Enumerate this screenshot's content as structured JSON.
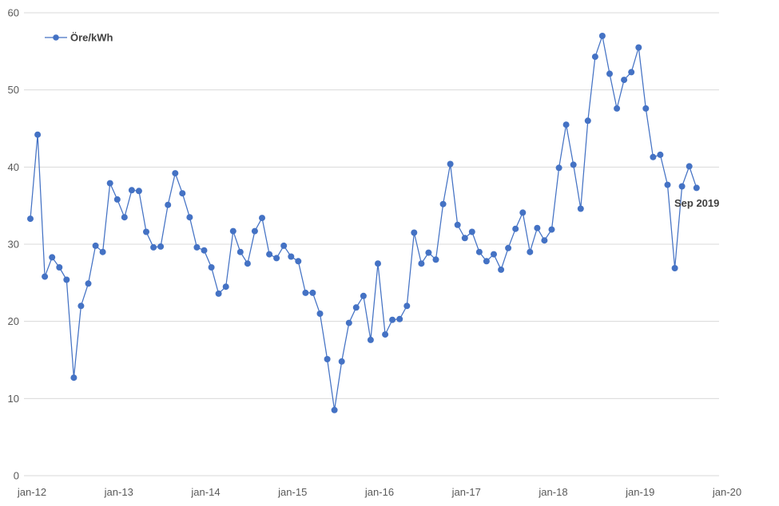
{
  "chart_data": {
    "type": "line",
    "series": [
      {
        "name": "Öre/kWh",
        "color": "#4472c4",
        "marker": "circle",
        "values": [
          33.3,
          44.2,
          25.8,
          28.3,
          27.0,
          25.4,
          12.7,
          22.0,
          24.9,
          29.8,
          29.0,
          37.9,
          35.8,
          33.5,
          37.0,
          36.9,
          31.6,
          29.6,
          29.7,
          35.1,
          39.2,
          36.6,
          33.5,
          29.6,
          29.2,
          27.0,
          23.6,
          24.5,
          31.7,
          29.0,
          27.5,
          31.7,
          33.4,
          28.7,
          28.2,
          29.8,
          28.4,
          27.8,
          23.7,
          23.7,
          21.0,
          15.1,
          8.5,
          14.8,
          19.8,
          21.8,
          23.3,
          17.6,
          27.5,
          18.3,
          20.2,
          20.3,
          22.0,
          31.5,
          27.5,
          28.9,
          28.0,
          35.2,
          40.4,
          32.5,
          30.8,
          31.6,
          29.0,
          27.8,
          28.7,
          26.7,
          29.5,
          32.0,
          34.1,
          29.0,
          32.1,
          30.5,
          31.9,
          39.9,
          45.5,
          40.3,
          34.6,
          46.0,
          54.3,
          57.0,
          52.1,
          47.6,
          51.3,
          52.3,
          55.5,
          47.6,
          41.3,
          41.6,
          37.7,
          26.9,
          37.5,
          40.1,
          37.3
        ]
      }
    ],
    "x_start": "jan-12",
    "x_step": "1 month",
    "x_tick_labels": [
      "jan-12",
      "jan-13",
      "jan-14",
      "jan-15",
      "jan-16",
      "jan-17",
      "jan-18",
      "jan-19",
      "jan-20"
    ],
    "y_tick_labels": [
      "0",
      "10",
      "20",
      "30",
      "40",
      "50",
      "60"
    ],
    "ylim": [
      0,
      60
    ],
    "grid": true,
    "legend_position": "top-left",
    "annotation": "Sep 2019",
    "title": "",
    "xlabel": "",
    "ylabel": ""
  }
}
